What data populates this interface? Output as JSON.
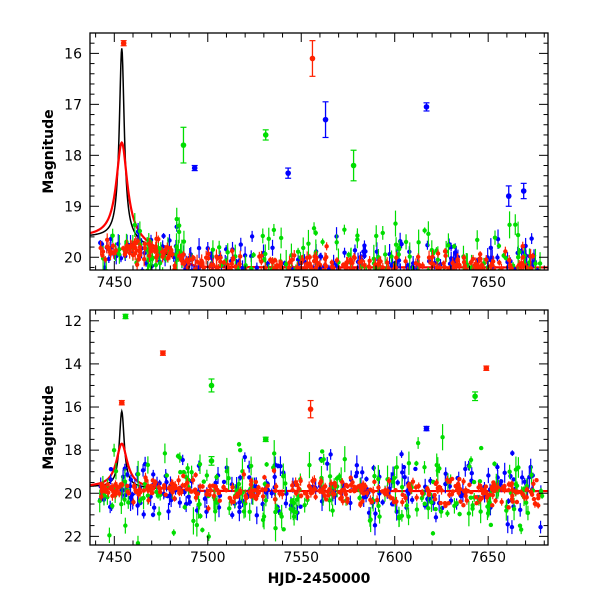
{
  "chart_data": [
    {
      "type": "scatter",
      "title": "",
      "xlabel": "",
      "ylabel": "Magnitude",
      "xlim": [
        7437,
        7682
      ],
      "ylim": [
        20.25,
        15.6
      ],
      "y_inverted": true,
      "x_ticks": [
        7450,
        7500,
        7550,
        7600,
        7650
      ],
      "y_ticks": [
        16,
        17,
        18,
        19,
        20
      ],
      "grid": false,
      "legend": "none",
      "model_curves": [
        {
          "color": "#000000",
          "peak_x": 7454,
          "peak_y": 15.9,
          "width": 1.6,
          "base_left": 19.6,
          "base_right": 20.2,
          "description": "narrow peak"
        },
        {
          "color": "#ff0000",
          "peak_x": 7454,
          "peak_y": 17.75,
          "width": 3.5,
          "base_left": 19.6,
          "base_right": 20.2,
          "description": "broad peak"
        }
      ],
      "series": [
        {
          "color": "#0000ff",
          "marker": "dot-errorbar",
          "baseline": 20.0,
          "scatter": 0.25
        },
        {
          "color": "#00dd00",
          "marker": "dot-errorbar",
          "baseline": 19.9,
          "scatter": 0.4
        },
        {
          "color": "#ff2200",
          "marker": "dot-errorbar",
          "baseline": 19.95,
          "scatter": 0.15
        }
      ],
      "highlighted_points": [
        {
          "x": 7455,
          "y": 15.8,
          "color": "#ff2200"
        },
        {
          "x": 7556,
          "y": 16.1,
          "color": "#ff2200",
          "err": 0.35
        },
        {
          "x": 7563,
          "y": 17.3,
          "color": "#0000ff",
          "err": 0.35
        },
        {
          "x": 7617,
          "y": 17.05,
          "color": "#0000ff",
          "err": 0.08
        },
        {
          "x": 7531,
          "y": 17.6,
          "color": "#00dd00",
          "err": 0.1
        },
        {
          "x": 7487,
          "y": 17.8,
          "color": "#00dd00",
          "err": 0.35
        },
        {
          "x": 7493,
          "y": 18.25,
          "color": "#0000ff",
          "err": 0.05
        },
        {
          "x": 7669,
          "y": 18.7,
          "color": "#0000ff",
          "err": 0.15
        },
        {
          "x": 7661,
          "y": 18.8,
          "color": "#0000ff",
          "err": 0.2
        },
        {
          "x": 7543,
          "y": 18.35,
          "color": "#0000ff",
          "err": 0.1
        },
        {
          "x": 7578,
          "y": 18.2,
          "color": "#00dd00",
          "err": 0.3
        }
      ]
    },
    {
      "type": "scatter",
      "title": "",
      "xlabel": "HJD-2450000",
      "ylabel": "Magnitude",
      "xlim": [
        7437,
        7682
      ],
      "ylim": [
        22.4,
        11.5
      ],
      "y_inverted": true,
      "x_ticks": [
        7450,
        7500,
        7550,
        7600,
        7650
      ],
      "y_ticks": [
        12,
        14,
        16,
        18,
        20,
        22
      ],
      "grid": false,
      "legend": "none",
      "model_curves": [
        {
          "color": "#000000",
          "peak_x": 7454,
          "peak_y": 16.2,
          "width": 1.6,
          "base_left": 19.7,
          "base_right": 19.9,
          "description": "narrow peak"
        },
        {
          "color": "#ff0000",
          "peak_x": 7454,
          "peak_y": 17.7,
          "width": 3.5,
          "base_left": 19.7,
          "base_right": 19.9,
          "description": "broad peak"
        }
      ],
      "series": [
        {
          "color": "#0000ff",
          "marker": "dot-errorbar",
          "baseline": 19.95,
          "scatter": 0.7
        },
        {
          "color": "#00dd00",
          "marker": "dot-errorbar",
          "baseline": 20.1,
          "scatter": 1.0
        },
        {
          "color": "#ff2200",
          "marker": "dot-errorbar",
          "baseline": 19.9,
          "scatter": 0.3
        }
      ],
      "highlighted_points": [
        {
          "x": 7456,
          "y": 11.8,
          "color": "#00dd00",
          "err": 0.1
        },
        {
          "x": 7476,
          "y": 13.5,
          "color": "#ff2200",
          "err": 0.1
        },
        {
          "x": 7649,
          "y": 14.2,
          "color": "#ff2200",
          "err": 0.1
        },
        {
          "x": 7643,
          "y": 15.5,
          "color": "#00dd00",
          "err": 0.2
        },
        {
          "x": 7502,
          "y": 15.0,
          "color": "#00dd00",
          "err": 0.3
        },
        {
          "x": 7555,
          "y": 16.1,
          "color": "#ff2200",
          "err": 0.4
        },
        {
          "x": 7454,
          "y": 15.8,
          "color": "#ff2200",
          "err": 0.1
        },
        {
          "x": 7617,
          "y": 17.0,
          "color": "#0000ff",
          "err": 0.1
        },
        {
          "x": 7531,
          "y": 17.5,
          "color": "#00dd00",
          "err": 0.1
        },
        {
          "x": 7502,
          "y": 18.5,
          "color": "#00dd00",
          "err": 0.2
        }
      ]
    }
  ]
}
